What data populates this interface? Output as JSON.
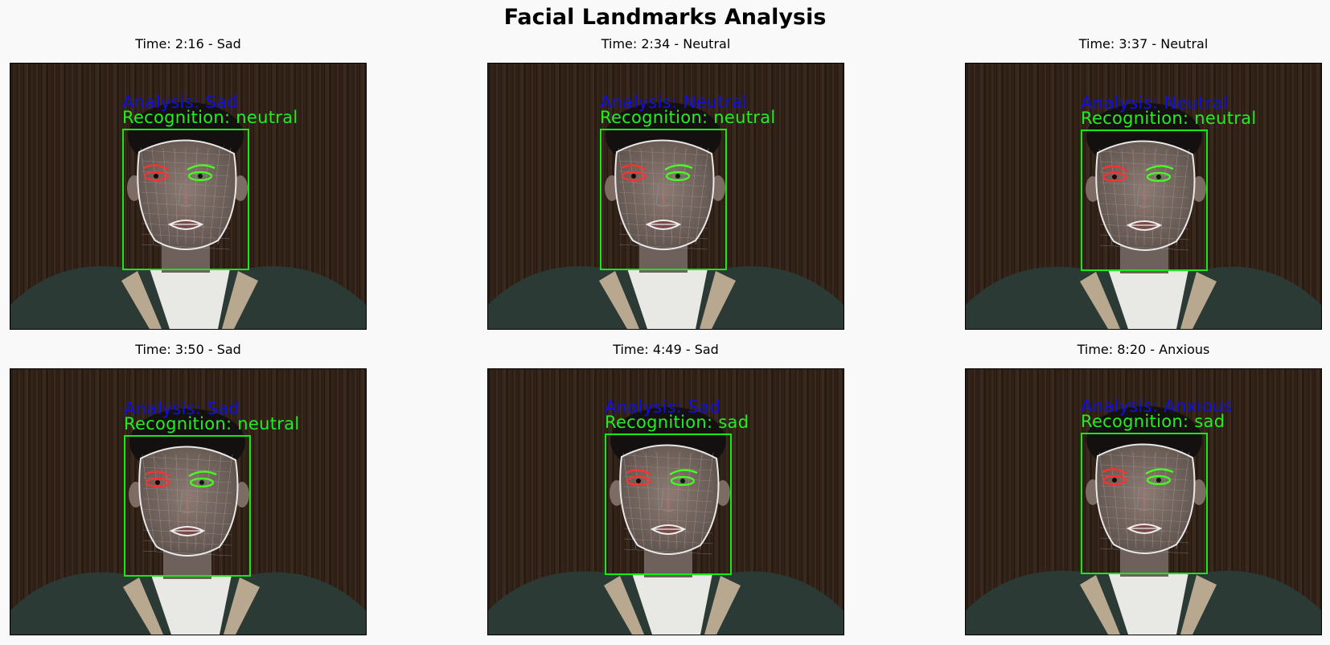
{
  "title": "Facial Landmarks Analysis",
  "panels": [
    {
      "time_label": "Time: 2:16 - Sad",
      "analysis": "Analysis: Sad",
      "recognition": "Recognition: neutral"
    },
    {
      "time_label": "Time: 2:34 - Neutral",
      "analysis": "Analysis: Neutral",
      "recognition": "Recognition: neutral"
    },
    {
      "time_label": "Time: 3:37 - Neutral",
      "analysis": "Analysis: Neutral",
      "recognition": "Recognition: neutral"
    },
    {
      "time_label": "Time: 3:50 - Sad",
      "analysis": "Analysis: Sad",
      "recognition": "Recognition: neutral"
    },
    {
      "time_label": "Time: 4:49 - Sad",
      "analysis": "Analysis: Sad",
      "recognition": "Recognition: sad"
    },
    {
      "time_label": "Time: 8:20 - Anxious",
      "analysis": "Analysis: Anxious",
      "recognition": "Recognition: sad"
    }
  ],
  "colors": {
    "analysis_text": "#1010e0",
    "recognition_text": "#22ee22",
    "face_box": "#18e818",
    "left_eye": "#ff3030",
    "right_eye": "#44ff22"
  }
}
